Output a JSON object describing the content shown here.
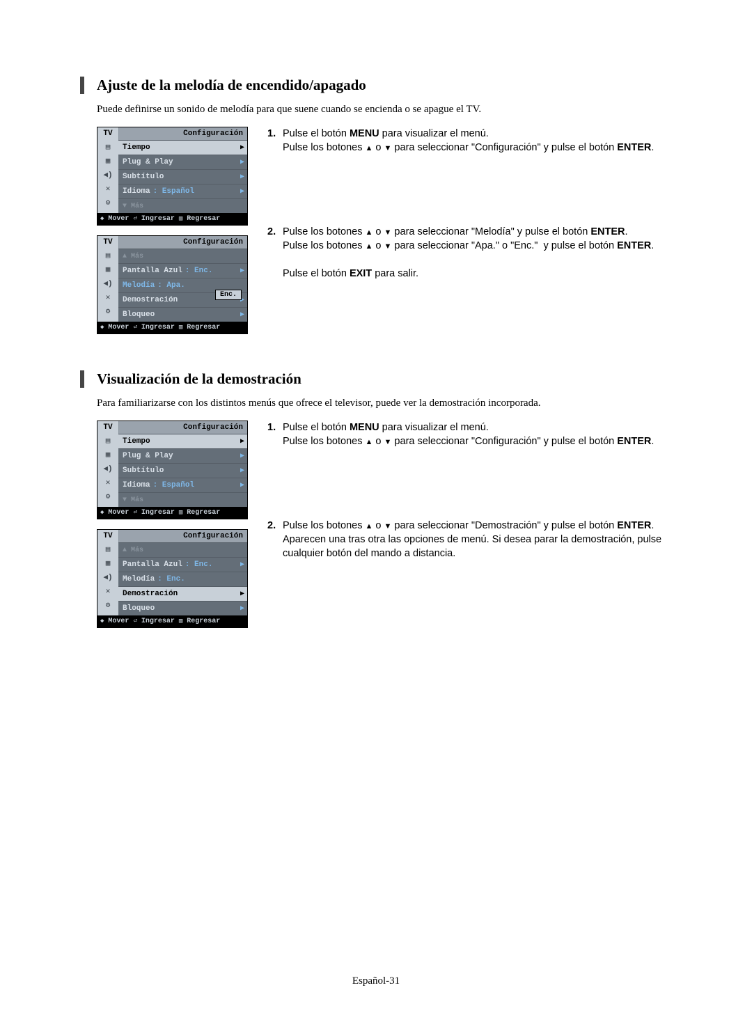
{
  "section1": {
    "title": "Ajuste de la melodía de encendido/apagado",
    "intro": "Puede definirse un sonido de melodía para que suene cuando se encienda o se apague el TV.",
    "steps": [
      {
        "num": "1.",
        "html": "Pulse el botón <b>MENU</b> para visualizar el menú.<br>Pulse los botones <span class='tri'>▲</span> o <span class='tri'>▼</span> para seleccionar \"Configuración\" y pulse el botón <b>ENTER</b>."
      },
      {
        "num": "2.",
        "html": "Pulse los botones <span class='tri'>▲</span> o <span class='tri'>▼</span> para seleccionar \"Melodía\" y pulse el botón <b>ENTER</b>.<br>Pulse los botones <span class='tri'>▲</span> o <span class='tri'>▼</span> para seleccionar \"Apa.\" o \"Enc.\"&nbsp;&nbsp;y pulse el botón <b>ENTER</b>.<br><br>Pulse el botón <b>EXIT</b> para salir."
      }
    ]
  },
  "section2": {
    "title": "Visualización de la demostración",
    "intro": "Para familiarizarse con los distintos menús que ofrece el televisor, puede ver la demostración incorporada.",
    "steps": [
      {
        "num": "1.",
        "html": "Pulse el botón <b>MENU</b> para visualizar el menú.<br>Pulse los botones <span class='tri'>▲</span> o <span class='tri'>▼</span> para seleccionar \"Configuración\" y pulse el botón <b>ENTER</b>."
      },
      {
        "num": "2.",
        "html": "Pulse los botones <span class='tri'>▲</span> o <span class='tri'>▼</span> para seleccionar \"Demostración\" y pulse el botón <b>ENTER</b>.<br>Aparecen una tras otra las opciones de menú. Si desea parar la demostración, pulse cualquier botón del mando a distancia."
      }
    ]
  },
  "osd": {
    "tv": "TV",
    "title": "Configuración",
    "footer": {
      "mover": "Mover",
      "ingresar": "Ingresar",
      "regresar": "Regresar"
    },
    "more_down": "▼ Más",
    "more_up": "▲ Más",
    "menuA": {
      "rows": [
        {
          "label": "Tiempo",
          "highlight": true
        },
        {
          "label": "Plug & Play"
        },
        {
          "label": "Subtítulo"
        },
        {
          "label": "Idioma",
          "val": ": Español"
        }
      ]
    },
    "menuB": {
      "rows": [
        {
          "label": "Pantalla Azul",
          "val": ": Enc."
        },
        {
          "label": "Melodía",
          "val": ": Apa.",
          "dropdown": "Enc.",
          "highlight_blue": true
        },
        {
          "label": "Demostración"
        },
        {
          "label": "Bloqueo"
        }
      ]
    },
    "menuD": {
      "rows": [
        {
          "label": "Pantalla Azul",
          "val": ": Enc."
        },
        {
          "label": "Melodía",
          "val": ": Enc."
        },
        {
          "label": "Demostración",
          "highlight": true
        },
        {
          "label": "Bloqueo"
        }
      ]
    }
  },
  "pagenum": "Español-31",
  "icons": [
    "💬",
    "▦",
    "🔊",
    "✕",
    "⚙"
  ],
  "colors": {
    "osd_bg": "#646e78",
    "osd_light": "#c8d0d8",
    "osd_blue": "#7fb8e8",
    "footer_bg": "#000"
  }
}
